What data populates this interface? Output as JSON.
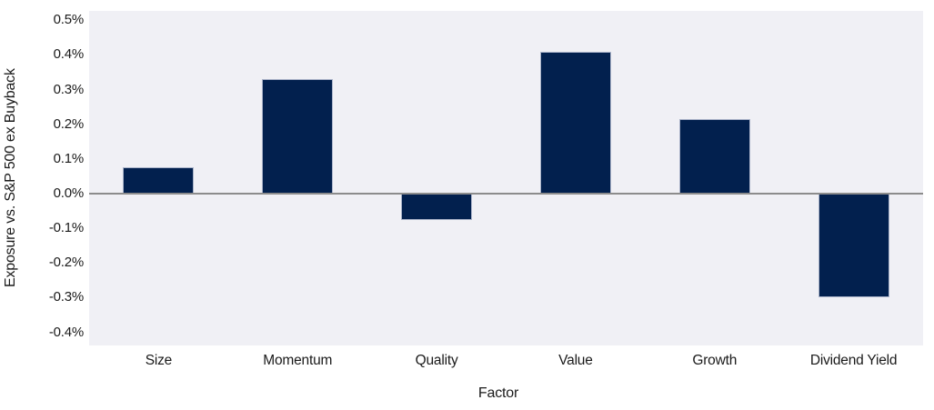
{
  "chart_data": {
    "type": "bar",
    "categories": [
      "Size",
      "Momentum",
      "Quality",
      "Value",
      "Growth",
      "Dividend Yield"
    ],
    "values": [
      0.075,
      0.33,
      -0.075,
      0.41,
      0.215,
      -0.3
    ],
    "title": "",
    "xlabel": "Factor",
    "ylabel": "Exposure vs. S&P 500 ex Buyback",
    "ylim": [
      -0.438,
      0.527
    ],
    "ytick_values": [
      0.5,
      0.4,
      0.3,
      0.2,
      0.1,
      0.0,
      -0.1,
      -0.2,
      -0.3,
      -0.4
    ],
    "ytick_labels": [
      "0.5%",
      "0.4%",
      "0.3%",
      "0.2%",
      "0.1%",
      "0.0%",
      "-0.1%",
      "-0.2%",
      "-0.3%",
      "-0.4%"
    ],
    "grid": false,
    "legend": "none",
    "colors": {
      "bar_fill": "#02204e",
      "bar_border": "#aab3c9",
      "plot_bg": "#f0f0f5",
      "zero_line": "#8c8c8c",
      "text": "#1a1a1a",
      "figure_bg": "#ffffff"
    }
  }
}
